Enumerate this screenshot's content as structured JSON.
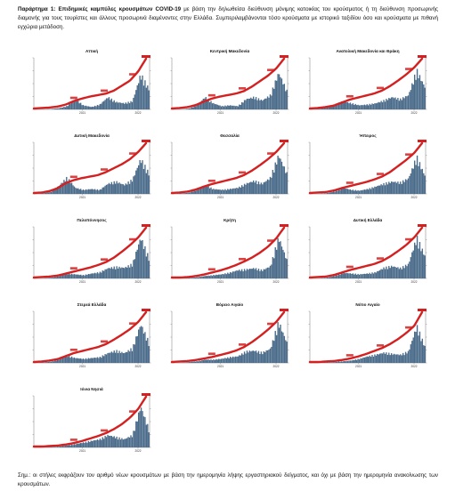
{
  "intro": {
    "lead": "Παράρτημα 1:  Επιδημικές καμπύλες κρουσμάτων COVID-19",
    "text": " με βάση την δηλωθείσα διεύθυνση μόνιμης κατοικίας του κρούσματος ή τη διεύθυνση προσωρινής διαμονής για τους τουρίστες και άλλους προσωρινά διαμένοντες στην Ελλάδα. Συμπεριλαμβάνονται τόσο κρούσματα με ιστορικό ταξιδίου όσο και κρούσματα με πιθανή εγχώρια μετάδοση."
  },
  "note": "Σημ.: οι στήλες εκφράζουν τον αριθμό νέων κρουσμάτων με βάση την ημερομηνία λήψης εργαστηριακού δείγματος, και όχι με βάση την ημερομηνία ανακοίνωσης των κρουσμάτων.",
  "colors": {
    "cumulative_line": "#d42020",
    "daily_bars": "#4a6b8a"
  },
  "chart_data": [
    {
      "type": "area",
      "title": "Αττική",
      "x_ticks": [
        "2021",
        "2022"
      ],
      "cumulative_shape": [
        0,
        0.01,
        0.02,
        0.04,
        0.08,
        0.15,
        0.2,
        0.24,
        0.27,
        0.3,
        0.36,
        0.46,
        0.56,
        0.74,
        1.0
      ],
      "daily_shape": [
        0,
        0,
        0.01,
        0.03,
        0.08,
        0.25,
        0.1,
        0.06,
        0.12,
        0.3,
        0.18,
        0.15,
        0.2,
        0.85,
        0.5
      ]
    },
    {
      "type": "area",
      "title": "Κεντρική Μακεδονία",
      "x_ticks": [
        "2021",
        "2022"
      ],
      "cumulative_shape": [
        0,
        0.01,
        0.03,
        0.07,
        0.14,
        0.2,
        0.24,
        0.27,
        0.3,
        0.35,
        0.44,
        0.55,
        0.66,
        0.8,
        1.0
      ],
      "daily_shape": [
        0,
        0,
        0.02,
        0.1,
        0.3,
        0.15,
        0.08,
        0.1,
        0.08,
        0.25,
        0.3,
        0.22,
        0.35,
        0.9,
        0.45
      ]
    },
    {
      "type": "area",
      "title": "Ανατολική Μακεδονία και Θράκη",
      "x_ticks": [
        "2021",
        "2022"
      ],
      "cumulative_shape": [
        0,
        0.01,
        0.03,
        0.06,
        0.12,
        0.18,
        0.22,
        0.26,
        0.3,
        0.36,
        0.45,
        0.56,
        0.68,
        0.82,
        1.0
      ],
      "daily_shape": [
        0,
        0.01,
        0.05,
        0.12,
        0.2,
        0.15,
        0.1,
        0.12,
        0.15,
        0.22,
        0.3,
        0.25,
        0.35,
        0.95,
        0.55
      ]
    },
    {
      "type": "area",
      "title": "Δυτική Μακεδονία",
      "x_ticks": [
        "2021",
        "2022"
      ],
      "cumulative_shape": [
        0,
        0.01,
        0.04,
        0.1,
        0.2,
        0.26,
        0.3,
        0.33,
        0.36,
        0.42,
        0.5,
        0.58,
        0.68,
        0.82,
        1.0
      ],
      "daily_shape": [
        0,
        0.01,
        0.05,
        0.2,
        0.4,
        0.15,
        0.1,
        0.12,
        0.1,
        0.25,
        0.3,
        0.22,
        0.35,
        0.85,
        0.5
      ]
    },
    {
      "type": "area",
      "title": "Θεσσαλία",
      "x_ticks": [
        "2021",
        "2022"
      ],
      "cumulative_shape": [
        0,
        0.01,
        0.03,
        0.07,
        0.13,
        0.18,
        0.22,
        0.26,
        0.3,
        0.36,
        0.45,
        0.56,
        0.68,
        0.82,
        1.0
      ],
      "daily_shape": [
        0,
        0.01,
        0.03,
        0.1,
        0.22,
        0.12,
        0.1,
        0.12,
        0.15,
        0.25,
        0.32,
        0.25,
        0.4,
        0.95,
        0.5
      ]
    },
    {
      "type": "area",
      "title": "Ήπειρος",
      "x_ticks": [
        "2021",
        "2022"
      ],
      "cumulative_shape": [
        0,
        0.01,
        0.02,
        0.05,
        0.1,
        0.14,
        0.18,
        0.22,
        0.27,
        0.33,
        0.42,
        0.54,
        0.66,
        0.8,
        1.0
      ],
      "daily_shape": [
        0,
        0,
        0.02,
        0.06,
        0.15,
        0.1,
        0.08,
        0.12,
        0.18,
        0.25,
        0.3,
        0.28,
        0.38,
        0.9,
        0.45
      ]
    },
    {
      "type": "area",
      "title": "Πελοπόννησος",
      "x_ticks": [
        "2021",
        "2022"
      ],
      "cumulative_shape": [
        0,
        0.01,
        0.02,
        0.04,
        0.08,
        0.12,
        0.16,
        0.2,
        0.25,
        0.31,
        0.4,
        0.52,
        0.65,
        0.8,
        1.0
      ],
      "daily_shape": [
        0,
        0,
        0.02,
        0.05,
        0.12,
        0.1,
        0.08,
        0.12,
        0.15,
        0.25,
        0.28,
        0.26,
        0.35,
        1.0,
        0.5
      ]
    },
    {
      "type": "area",
      "title": "Κρήτη",
      "x_ticks": [
        "2021",
        "2022"
      ],
      "cumulative_shape": [
        0,
        0.0,
        0.01,
        0.03,
        0.06,
        0.1,
        0.14,
        0.19,
        0.25,
        0.32,
        0.4,
        0.5,
        0.62,
        0.78,
        1.0
      ],
      "daily_shape": [
        0,
        0,
        0.01,
        0.03,
        0.06,
        0.08,
        0.1,
        0.14,
        0.2,
        0.22,
        0.25,
        0.2,
        0.3,
        1.0,
        0.45
      ]
    },
    {
      "type": "area",
      "title": "Δυτική Ελλάδα",
      "x_ticks": [
        "2021",
        "2022"
      ],
      "cumulative_shape": [
        0,
        0.01,
        0.02,
        0.05,
        0.1,
        0.15,
        0.19,
        0.23,
        0.27,
        0.33,
        0.42,
        0.53,
        0.65,
        0.8,
        1.0
      ],
      "daily_shape": [
        0,
        0,
        0.02,
        0.06,
        0.14,
        0.12,
        0.1,
        0.12,
        0.15,
        0.26,
        0.3,
        0.25,
        0.35,
        1.0,
        0.55
      ]
    },
    {
      "type": "area",
      "title": "Στερεά Ελλάδα",
      "x_ticks": [
        "2021",
        "2022"
      ],
      "cumulative_shape": [
        0,
        0.01,
        0.03,
        0.06,
        0.12,
        0.18,
        0.22,
        0.26,
        0.3,
        0.36,
        0.45,
        0.55,
        0.66,
        0.8,
        1.0
      ],
      "daily_shape": [
        0,
        0.01,
        0.03,
        0.08,
        0.18,
        0.12,
        0.1,
        0.12,
        0.14,
        0.24,
        0.3,
        0.24,
        0.36,
        0.95,
        0.5
      ]
    },
    {
      "type": "area",
      "title": "Βόρειο Αιγαίο",
      "x_ticks": [
        "2021",
        "2022"
      ],
      "cumulative_shape": [
        0,
        0.01,
        0.02,
        0.04,
        0.07,
        0.1,
        0.14,
        0.18,
        0.23,
        0.3,
        0.4,
        0.52,
        0.65,
        0.8,
        1.0
      ],
      "daily_shape": [
        0,
        0,
        0.02,
        0.04,
        0.08,
        0.08,
        0.1,
        0.14,
        0.16,
        0.28,
        0.3,
        0.25,
        0.35,
        1.0,
        0.5
      ]
    },
    {
      "type": "area",
      "title": "Νότιο Αιγαίο",
      "x_ticks": [
        "2021",
        "2022"
      ],
      "cumulative_shape": [
        0,
        0.0,
        0.01,
        0.02,
        0.04,
        0.07,
        0.11,
        0.16,
        0.22,
        0.28,
        0.36,
        0.46,
        0.58,
        0.72,
        1.0
      ],
      "daily_shape": [
        0,
        0,
        0.01,
        0.02,
        0.04,
        0.06,
        0.1,
        0.16,
        0.2,
        0.25,
        0.22,
        0.2,
        0.28,
        0.9,
        0.4
      ]
    },
    {
      "type": "area",
      "title": "Ιόνια Νησιά",
      "x_ticks": [
        "2021",
        "2022"
      ],
      "cumulative_shape": [
        0,
        0.0,
        0.01,
        0.02,
        0.04,
        0.07,
        0.11,
        0.16,
        0.21,
        0.27,
        0.35,
        0.45,
        0.58,
        0.75,
        1.0
      ],
      "daily_shape": [
        0,
        0,
        0.01,
        0.02,
        0.05,
        0.08,
        0.12,
        0.16,
        0.2,
        0.3,
        0.25,
        0.2,
        0.3,
        1.0,
        0.45
      ]
    }
  ]
}
